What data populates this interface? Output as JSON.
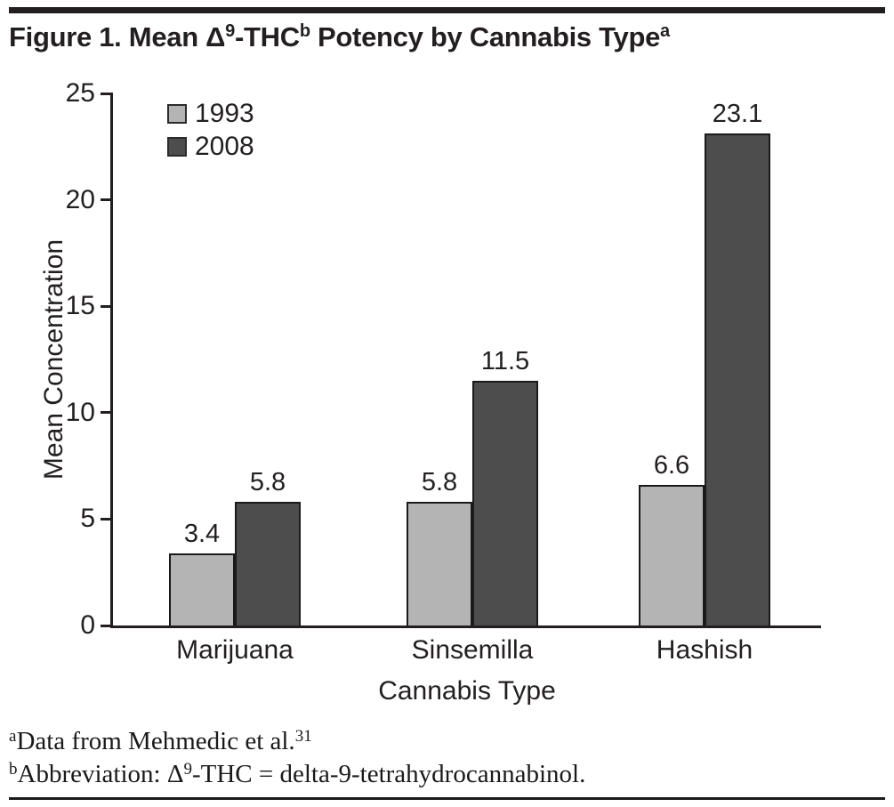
{
  "title": {
    "segments": [
      {
        "t": "Figure 1. Mean Δ"
      },
      {
        "t": "9",
        "sup": true
      },
      {
        "t": "-THC"
      },
      {
        "t": "b",
        "sup": true
      },
      {
        "t": " Potency by Cannabis Type"
      },
      {
        "t": "a",
        "sup": true
      }
    ]
  },
  "chart_data": {
    "type": "bar",
    "categories": [
      "Marijuana",
      "Sinsemilla",
      "Hashish"
    ],
    "series": [
      {
        "name": "1993",
        "color": "#b4b4b4",
        "values": [
          3.4,
          5.8,
          6.6
        ]
      },
      {
        "name": "2008",
        "color": "#4d4d4d",
        "values": [
          5.8,
          11.5,
          23.1
        ]
      }
    ],
    "title": "Figure 1. Mean Δ9-THCb Potency by Cannabis Typea",
    "xlabel": "Cannabis Type",
    "ylabel": "Mean Concentration",
    "ylim": [
      0,
      25
    ],
    "yticks": [
      0,
      5,
      10,
      15,
      20,
      25
    ],
    "grid": false,
    "legend_position": "top-left",
    "value_labels": true,
    "bar_outline_color": "#1a1a1a",
    "axis_color": "#231f20"
  },
  "footnotes": [
    {
      "segments": [
        {
          "t": "a",
          "sup": true
        },
        {
          "t": "Data from Mehmedic et al."
        },
        {
          "t": "31",
          "sup": true
        }
      ]
    },
    {
      "segments": [
        {
          "t": "b",
          "sup": true
        },
        {
          "t": "Abbreviation: Δ"
        },
        {
          "t": "9",
          "sup": true
        },
        {
          "t": "-THC = delta-9-tetrahydrocannabinol."
        }
      ]
    }
  ]
}
